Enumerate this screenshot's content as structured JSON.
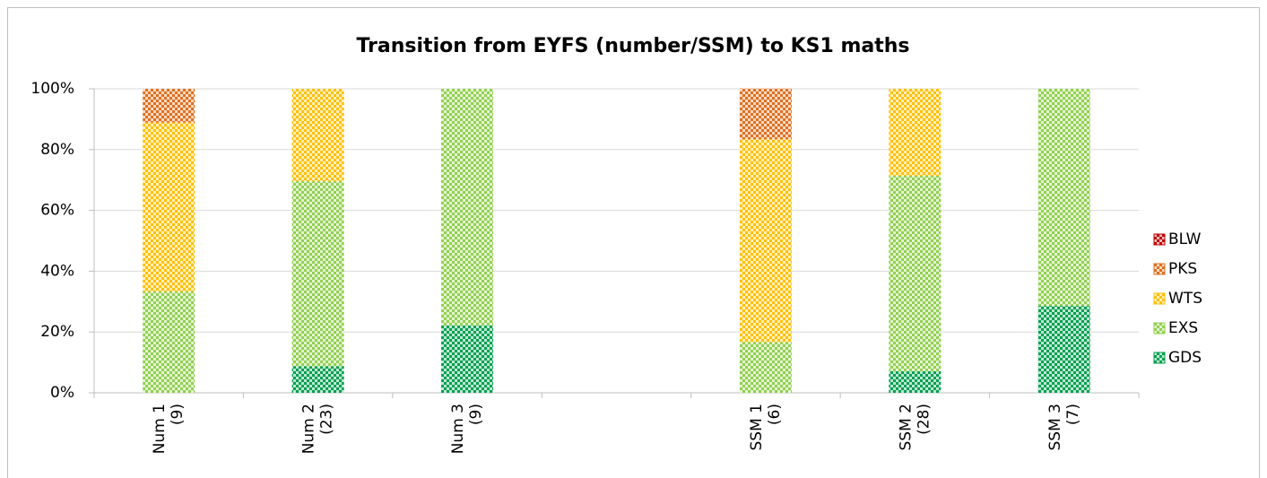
{
  "chart_data": {
    "type": "bar",
    "stacked": true,
    "title": "Transition from EYFS (number/SSM) to KS1 maths",
    "categories": [
      [
        "Num 1",
        "(9)"
      ],
      [
        "Num 2",
        "(23)"
      ],
      [
        "Num 3",
        "(9)"
      ],
      null,
      [
        "SSM 1",
        "(6)"
      ],
      [
        "SSM 2",
        "(28)"
      ],
      [
        "SSM 3",
        "(7)"
      ]
    ],
    "series": [
      {
        "name": "GDS",
        "color": "#00a050",
        "values": [
          0,
          8.7,
          22.2,
          null,
          0,
          7.1,
          28.6
        ]
      },
      {
        "name": "EXS",
        "color": "#92d050",
        "values": [
          33.3,
          60.9,
          77.8,
          null,
          16.7,
          64.3,
          71.4
        ]
      },
      {
        "name": "WTS",
        "color": "#ffc000",
        "values": [
          55.6,
          30.4,
          0,
          null,
          66.7,
          28.6,
          0
        ]
      },
      {
        "name": "PKS",
        "color": "#e07020",
        "values": [
          11.1,
          0,
          0,
          null,
          16.7,
          0,
          0
        ]
      },
      {
        "name": "BLW",
        "color": "#c00000",
        "values": [
          0,
          0,
          0,
          null,
          0,
          0,
          0
        ]
      }
    ],
    "ylim": [
      0,
      100
    ],
    "yticks": [
      {
        "value": 0,
        "label": "0%"
      },
      {
        "value": 20,
        "label": "20%"
      },
      {
        "value": 40,
        "label": "40%"
      },
      {
        "value": 60,
        "label": "60%"
      },
      {
        "value": 80,
        "label": "80%"
      },
      {
        "value": 100,
        "label": "100%"
      }
    ],
    "grid": true,
    "legend": "right"
  }
}
